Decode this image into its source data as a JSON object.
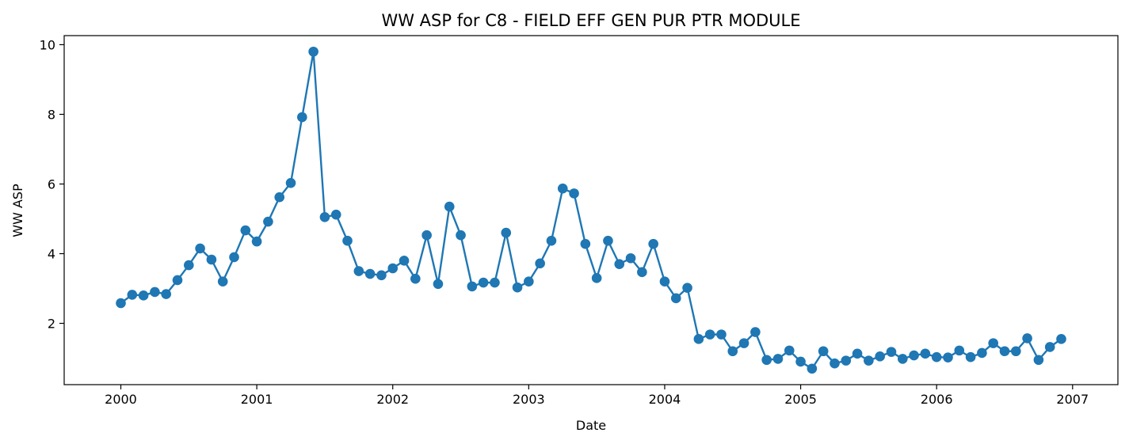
{
  "chart_data": {
    "type": "line",
    "title": "WW ASP for C8 - FIELD EFF GEN PUR PTR MODULE",
    "xlabel": "Date",
    "ylabel": "WW ASP",
    "x_tick_labels": [
      "2000",
      "2001",
      "2002",
      "2003",
      "2004",
      "2005",
      "2006",
      "2007"
    ],
    "y_tick_labels": [
      "2",
      "4",
      "6",
      "8",
      "10"
    ],
    "y_ticks": [
      2,
      4,
      6,
      8,
      10
    ],
    "xlim": [
      "1999-08",
      "2007-05"
    ],
    "ylim": [
      0.24,
      10.26
    ],
    "grid": false,
    "legend": "none",
    "marker": "circle",
    "series": [
      {
        "color": "#1f77b4",
        "x": [
          "2000-01",
          "2000-02",
          "2000-03",
          "2000-04",
          "2000-05",
          "2000-06",
          "2000-07",
          "2000-08",
          "2000-09",
          "2000-10",
          "2000-11",
          "2000-12",
          "2001-01",
          "2001-02",
          "2001-03",
          "2001-04",
          "2001-05",
          "2001-06",
          "2001-07",
          "2001-08",
          "2001-09",
          "2001-10",
          "2001-11",
          "2001-12",
          "2002-01",
          "2002-02",
          "2002-03",
          "2002-04",
          "2002-05",
          "2002-06",
          "2002-07",
          "2002-08",
          "2002-09",
          "2002-10",
          "2002-11",
          "2002-12",
          "2003-01",
          "2003-02",
          "2003-03",
          "2003-04",
          "2003-05",
          "2003-06",
          "2003-07",
          "2003-08",
          "2003-09",
          "2003-10",
          "2003-11",
          "2003-12",
          "2004-01",
          "2004-02",
          "2004-03",
          "2004-04",
          "2004-05",
          "2004-06",
          "2004-07",
          "2004-08",
          "2004-09",
          "2004-10",
          "2004-11",
          "2004-12",
          "2005-01",
          "2005-02",
          "2005-03",
          "2005-04",
          "2005-05",
          "2005-06",
          "2005-07",
          "2005-08",
          "2005-09",
          "2005-10",
          "2005-11",
          "2005-12",
          "2006-01",
          "2006-02",
          "2006-03",
          "2006-04",
          "2006-05",
          "2006-06",
          "2006-07",
          "2006-08",
          "2006-09",
          "2006-10",
          "2006-11",
          "2006-12"
        ],
        "y": [
          2.58,
          2.82,
          2.8,
          2.9,
          2.84,
          3.24,
          3.67,
          4.15,
          3.83,
          3.2,
          3.9,
          4.67,
          4.35,
          4.92,
          5.62,
          6.03,
          7.92,
          9.8,
          5.05,
          5.12,
          4.37,
          3.5,
          3.42,
          3.38,
          3.58,
          3.8,
          3.28,
          4.53,
          3.13,
          5.35,
          4.53,
          3.06,
          3.17,
          3.17,
          4.6,
          3.03,
          3.2,
          3.72,
          4.37,
          5.87,
          5.73,
          4.28,
          3.3,
          4.37,
          3.7,
          3.87,
          3.47,
          4.28,
          3.2,
          2.72,
          3.02,
          1.55,
          1.68,
          1.68,
          1.2,
          1.43,
          1.75,
          0.95,
          0.98,
          1.22,
          0.9,
          0.7,
          1.2,
          0.85,
          0.93,
          1.13,
          0.93,
          1.05,
          1.18,
          0.98,
          1.08,
          1.13,
          1.03,
          1.02,
          1.22,
          1.03,
          1.15,
          1.43,
          1.2,
          1.2,
          1.57,
          0.95,
          1.32,
          1.55
        ]
      }
    ]
  }
}
